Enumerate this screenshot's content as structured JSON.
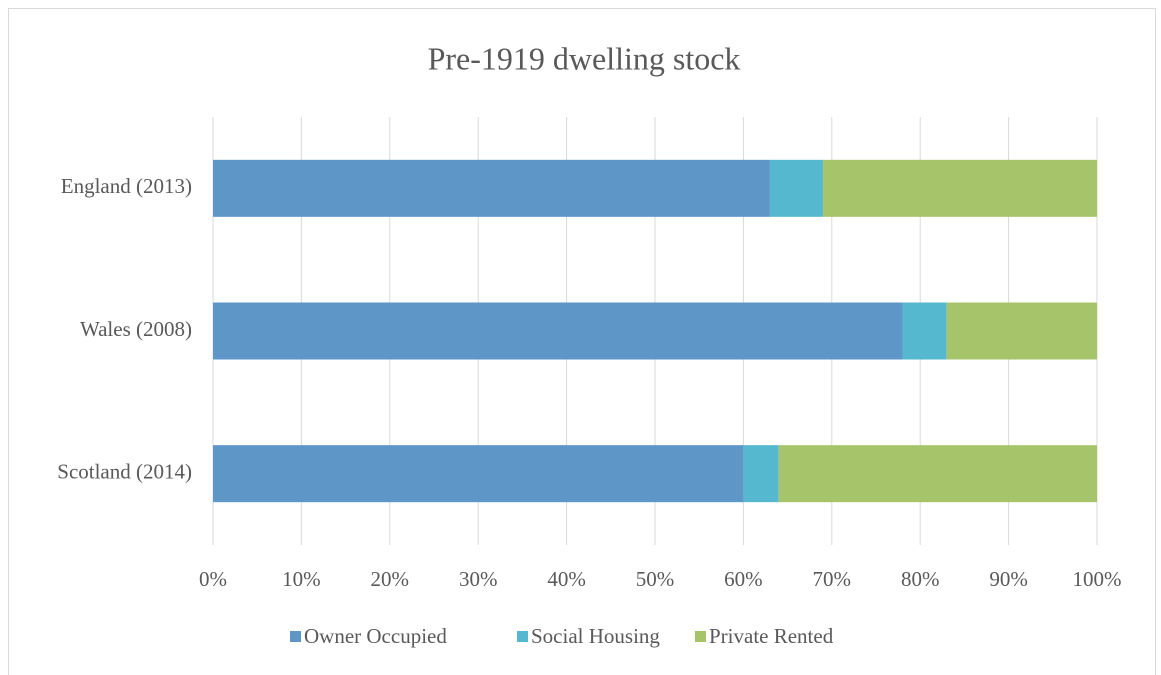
{
  "chart_data": {
    "type": "stacked_bar_horizontal",
    "title": "Pre-1919 dwelling stock",
    "categories": [
      "England (2013)",
      "Wales (2008)",
      "Scotland (2014)"
    ],
    "series": [
      {
        "name": "Owner Occupied",
        "color": "#5f96c8",
        "values": [
          63,
          78,
          60
        ]
      },
      {
        "name": "Social Housing",
        "color": "#56b8cf",
        "values": [
          6,
          5,
          4
        ]
      },
      {
        "name": "Private Rented",
        "color": "#a6c46a",
        "values": [
          31,
          17,
          36
        ]
      }
    ],
    "xlim": [
      0,
      100
    ],
    "xticks": [
      {
        "value": 0,
        "label": "0%"
      },
      {
        "value": 10,
        "label": "10%"
      },
      {
        "value": 20,
        "label": "20%"
      },
      {
        "value": 30,
        "label": "30%"
      },
      {
        "value": 40,
        "label": "40%"
      },
      {
        "value": 50,
        "label": "50%"
      },
      {
        "value": 60,
        "label": "60%"
      },
      {
        "value": 70,
        "label": "70%"
      },
      {
        "value": 80,
        "label": "80%"
      },
      {
        "value": 90,
        "label": "90%"
      },
      {
        "value": 100,
        "label": "100%"
      }
    ],
    "grid": true,
    "legend": "bottom"
  }
}
